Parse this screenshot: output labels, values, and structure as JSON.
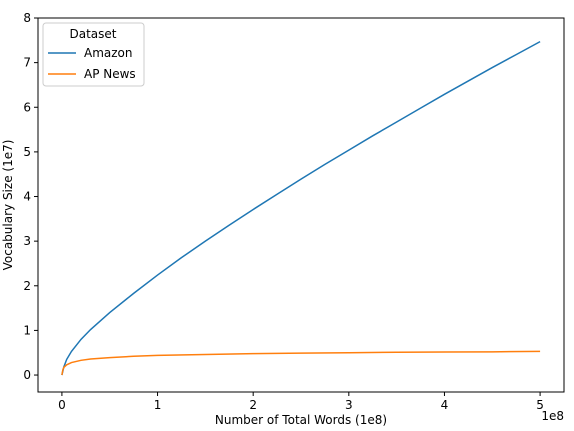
{
  "chart_data": {
    "type": "line",
    "xlabel": "Number of Total Words (1e8)",
    "ylabel": "Vocabulary Size (1e7)",
    "x_offset_text": "1e8",
    "xlim": [
      -0.25,
      5.25
    ],
    "ylim": [
      -0.38,
      8.0
    ],
    "xticks": [
      0,
      1,
      2,
      3,
      4,
      5
    ],
    "yticks": [
      0,
      1,
      2,
      3,
      4,
      5,
      6,
      7,
      8
    ],
    "grid": false,
    "legend": {
      "title": "Dataset",
      "position": "top-left"
    },
    "series": [
      {
        "name": "Amazon",
        "color": "#1f77b4",
        "x": [
          0,
          0.02,
          0.05,
          0.1,
          0.2,
          0.3,
          0.5,
          0.75,
          1.0,
          1.25,
          1.5,
          1.75,
          2.0,
          2.25,
          2.5,
          2.75,
          3.0,
          3.25,
          3.5,
          3.75,
          4.0,
          4.25,
          4.5,
          4.75,
          5.0
        ],
        "y": [
          0.0,
          0.18,
          0.35,
          0.53,
          0.8,
          1.02,
          1.4,
          1.83,
          2.24,
          2.63,
          3.0,
          3.36,
          3.71,
          4.05,
          4.39,
          4.72,
          5.04,
          5.36,
          5.67,
          5.98,
          6.29,
          6.59,
          6.89,
          7.18,
          7.47
        ]
      },
      {
        "name": "AP News",
        "color": "#ff7f0e",
        "x": [
          0,
          0.01,
          0.02,
          0.05,
          0.1,
          0.2,
          0.3,
          0.5,
          0.75,
          1.0,
          1.5,
          2.0,
          2.5,
          3.0,
          3.5,
          4.0,
          4.5,
          5.0
        ],
        "y": [
          0.0,
          0.12,
          0.17,
          0.23,
          0.28,
          0.33,
          0.36,
          0.39,
          0.42,
          0.44,
          0.46,
          0.48,
          0.49,
          0.5,
          0.51,
          0.515,
          0.52,
          0.53
        ]
      }
    ]
  }
}
